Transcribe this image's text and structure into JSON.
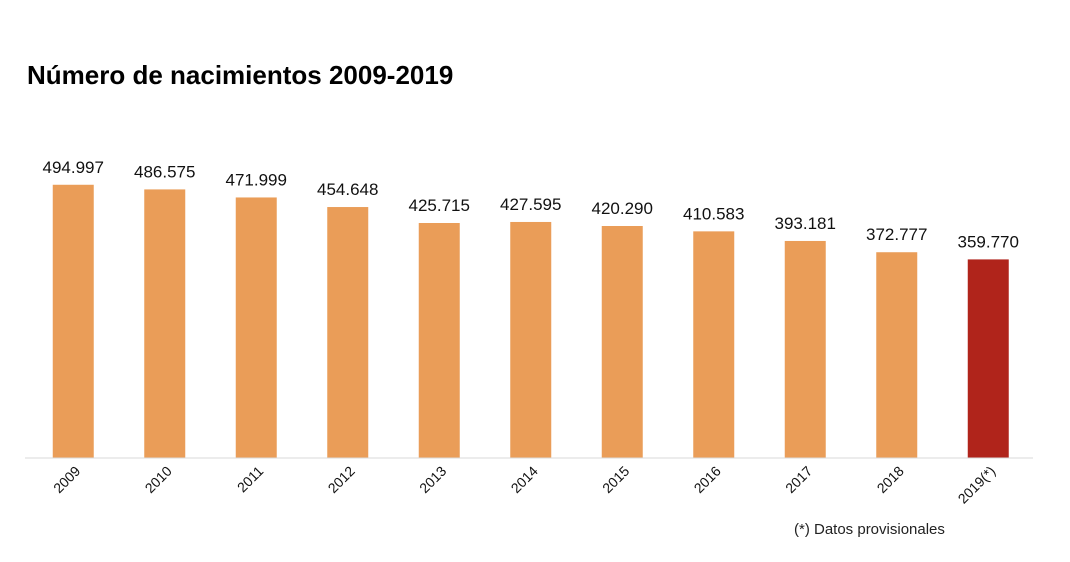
{
  "chart_data": {
    "type": "bar",
    "title": "Número de nacimientos 2009-2019",
    "categories": [
      "2009",
      "2010",
      "2011",
      "2012",
      "2013",
      "2014",
      "2015",
      "2016",
      "2017",
      "2018",
      "2019(*)"
    ],
    "values": [
      494997,
      486575,
      471999,
      454648,
      425715,
      427595,
      420290,
      410583,
      393181,
      372777,
      359770
    ],
    "data_labels": [
      "494.997",
      "486.575",
      "471.999",
      "454.648",
      "425.715",
      "427.595",
      "420.290",
      "410.583",
      "393.181",
      "372.777",
      "359.770"
    ],
    "ylim": [
      0,
      500000
    ],
    "grid": false,
    "colors": {
      "default": "#EA9D58",
      "provisional": "#B0241B"
    },
    "highlight_index": 10,
    "xlabel": "",
    "ylabel": "",
    "footnote": "(*) Datos provisionales"
  }
}
